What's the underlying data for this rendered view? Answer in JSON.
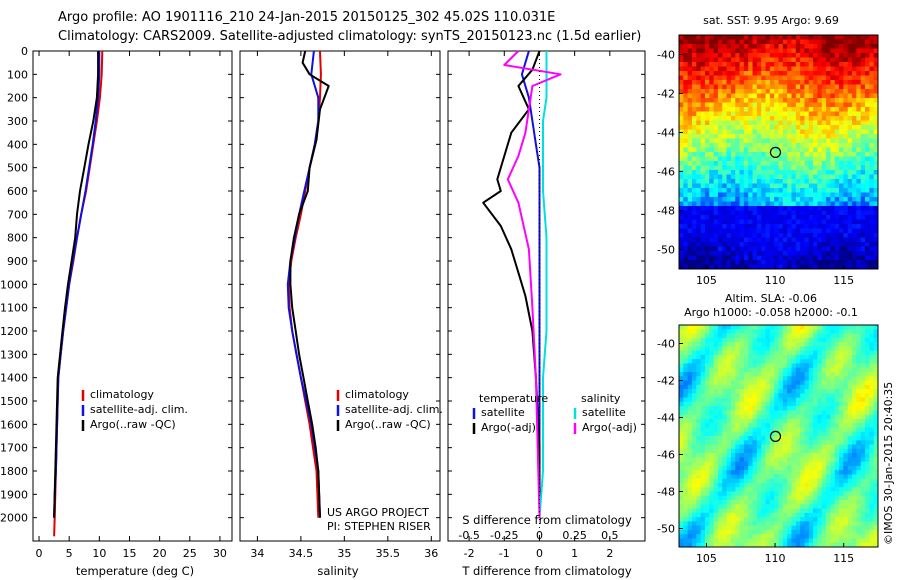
{
  "header": {
    "line1": "Argo profile: AO 1901116_210 24-Jan-2015 20150125_302 45.02S 110.031E",
    "line2": "Climatology: CARS2009. Satellite-adjusted climatology: synTS_20150123.nc (1.5d earlier)"
  },
  "colors": {
    "climatology": "#e00000",
    "satellite": "#1010e0",
    "argo": "#000000",
    "salinity_satellite": "#00e0e0",
    "salinity_argo": "#ff00ff"
  },
  "chart_data": [
    {
      "type": "line",
      "name": "temperature-panel",
      "xlabel": "temperature (deg C)",
      "xlim": [
        -1,
        32
      ],
      "ylim": [
        2100,
        0
      ],
      "xticks": [
        0,
        5,
        10,
        15,
        20,
        25,
        30
      ],
      "yticks": [
        0,
        100,
        200,
        300,
        400,
        500,
        600,
        700,
        800,
        900,
        1000,
        1100,
        1200,
        1300,
        1400,
        1500,
        1600,
        1700,
        1800,
        1900,
        2000
      ],
      "legend": [
        "climatology",
        "satellite-adj. clim.",
        "Argo(..raw -QC)"
      ],
      "series": [
        {
          "name": "climatology",
          "color": "#e00000",
          "x": [
            10.5,
            10.4,
            10.1,
            9.6,
            9.0,
            8.4,
            7.8,
            7.0,
            6.3,
            5.7,
            5.0,
            4.5,
            4.0,
            3.6,
            3.2,
            3.0,
            2.8,
            2.7,
            2.6,
            2.5
          ],
          "y": [
            0,
            100,
            200,
            300,
            400,
            500,
            600,
            700,
            800,
            900,
            1000,
            1100,
            1200,
            1300,
            1400,
            1600,
            1800,
            1900,
            2000,
            2080
          ]
        },
        {
          "name": "satellite-adj. clim.",
          "color": "#1010e0",
          "x": [
            10.0,
            10.0,
            9.8,
            9.4,
            8.9,
            8.3,
            7.7,
            7.0,
            6.3,
            5.6,
            5.0,
            4.5,
            4.0,
            3.6,
            3.2,
            3.0,
            2.8,
            2.6,
            2.5
          ],
          "y": [
            0,
            100,
            200,
            300,
            400,
            500,
            600,
            700,
            800,
            900,
            1000,
            1100,
            1200,
            1300,
            1400,
            1600,
            1800,
            1900,
            2000
          ]
        },
        {
          "name": "Argo(..raw -QC)",
          "color": "#000000",
          "x": [
            9.8,
            9.8,
            9.6,
            9.0,
            8.2,
            7.5,
            6.8,
            6.3,
            6.0,
            5.4,
            4.8,
            4.3,
            3.9,
            3.5,
            3.1,
            2.9,
            2.7,
            2.6,
            2.5
          ],
          "y": [
            0,
            100,
            200,
            300,
            400,
            500,
            600,
            700,
            800,
            900,
            1000,
            1100,
            1200,
            1300,
            1400,
            1600,
            1800,
            1900,
            2000
          ]
        }
      ]
    },
    {
      "type": "line",
      "name": "salinity-panel",
      "xlabel": "salinity",
      "xlim": [
        33.8,
        36.1
      ],
      "ylim": [
        2100,
        0
      ],
      "xticks": [
        34,
        34.5,
        35,
        35.5,
        36
      ],
      "legend": [
        "climatology",
        "satellite-adj. clim.",
        "Argo(..raw -QC)"
      ],
      "note_line1": "US ARGO PROJECT",
      "note_line2": "PI: STEPHEN RISER",
      "series": [
        {
          "name": "climatology",
          "color": "#e00000",
          "x": [
            34.72,
            34.73,
            34.72,
            34.7,
            34.66,
            34.6,
            34.55,
            34.5,
            34.44,
            34.39,
            34.36,
            34.37,
            34.4,
            34.45,
            34.5,
            34.55,
            34.6,
            34.64,
            34.68,
            34.7
          ],
          "y": [
            0,
            100,
            200,
            300,
            400,
            500,
            600,
            700,
            800,
            900,
            1000,
            1100,
            1200,
            1300,
            1400,
            1500,
            1600,
            1700,
            1800,
            2000
          ]
        },
        {
          "name": "satellite-adj. clim.",
          "color": "#1010e0",
          "x": [
            34.65,
            34.62,
            34.7,
            34.7,
            34.66,
            34.6,
            34.54,
            34.48,
            34.43,
            34.38,
            34.35,
            34.36,
            34.4,
            34.45,
            34.5,
            34.56,
            34.62,
            34.66,
            34.7,
            34.72
          ],
          "y": [
            0,
            100,
            200,
            300,
            400,
            500,
            600,
            700,
            800,
            900,
            1000,
            1100,
            1200,
            1300,
            1400,
            1500,
            1600,
            1700,
            1800,
            2000
          ]
        },
        {
          "name": "Argo(..raw -QC)",
          "color": "#000000",
          "x": [
            34.55,
            34.52,
            34.6,
            34.82,
            34.72,
            34.68,
            34.6,
            34.58,
            34.48,
            34.42,
            34.38,
            34.38,
            34.4,
            34.44,
            34.48,
            34.53,
            34.58,
            34.63,
            34.67,
            34.7,
            34.72
          ],
          "y": [
            0,
            50,
            100,
            150,
            250,
            380,
            500,
            600,
            700,
            800,
            900,
            1000,
            1100,
            1200,
            1300,
            1400,
            1500,
            1600,
            1700,
            1800,
            2000
          ]
        }
      ]
    },
    {
      "type": "line",
      "name": "difference-panel",
      "xlabel": "T difference from climatology",
      "top_axis_label": "S difference from climatology",
      "xlim": [
        -2.6,
        3.0
      ],
      "xticks": [
        -2,
        -1,
        0,
        1,
        2
      ],
      "top_xticks": [
        "-0.5",
        "-0.25",
        "0",
        "0.25",
        "0.5"
      ],
      "top_xtick_values": [
        -2,
        -1,
        0,
        1,
        2
      ],
      "ylim": [
        2100,
        0
      ],
      "legend_temp_title": "temperature",
      "legend_sal_title": "salinity",
      "legend_temp": [
        "satellite",
        "Argo(-adj)"
      ],
      "legend_sal": [
        "satellite",
        "Argo(-adj)"
      ],
      "series": [
        {
          "name": "T satellite",
          "color": "#1010e0",
          "x": [
            -0.3,
            -0.5,
            -0.3,
            -0.2,
            -0.1,
            0.0,
            0.0,
            0.0,
            0.0,
            0.0,
            0.0,
            0.0,
            0.0,
            0.0
          ],
          "y": [
            0,
            100,
            200,
            300,
            400,
            500,
            700,
            900,
            1100,
            1300,
            1500,
            1700,
            1900,
            2000
          ]
        },
        {
          "name": "T Argo(-adj)",
          "color": "#000000",
          "x": [
            0.0,
            -0.2,
            -0.6,
            -0.3,
            -0.8,
            -1.0,
            -1.2,
            -1.1,
            -1.6,
            -1.1,
            -0.8,
            -0.6,
            -0.4,
            -0.2,
            -0.1,
            0.0,
            0.0
          ],
          "y": [
            0,
            80,
            150,
            250,
            350,
            450,
            550,
            600,
            650,
            750,
            850,
            950,
            1050,
            1200,
            1400,
            1700,
            2000
          ]
        },
        {
          "name": "S satellite",
          "color": "#00e0e0",
          "x": [
            0.2,
            0.2,
            0.2,
            0.1,
            0.1,
            0.1,
            0.2,
            0.2,
            0.2,
            0.1,
            0.1,
            0.1,
            0.0
          ],
          "y": [
            0,
            100,
            200,
            300,
            400,
            600,
            800,
            1000,
            1200,
            1400,
            1600,
            1800,
            2000
          ]
        },
        {
          "name": "S Argo(-adj)",
          "color": "#ff00ff",
          "x": [
            -0.6,
            -1.0,
            0.6,
            -0.2,
            -0.3,
            -0.4,
            -0.6,
            -0.9,
            -0.6,
            -0.3,
            -0.2,
            -0.1,
            0.0
          ],
          "y": [
            0,
            60,
            100,
            150,
            250,
            350,
            450,
            550,
            650,
            850,
            1100,
            1400,
            2000
          ]
        }
      ]
    },
    {
      "type": "heatmap",
      "name": "sst-map",
      "title": "sat. SST: 9.95  Argo: 9.69",
      "xlim": [
        103,
        117.5
      ],
      "ylim": [
        -51,
        -39
      ],
      "xticks": [
        105,
        110,
        115
      ],
      "yticks": [
        -40,
        -42,
        -44,
        -46,
        -48,
        -50
      ],
      "marker": [
        110.03,
        -45.02
      ]
    },
    {
      "type": "heatmap",
      "name": "sla-map",
      "title_line1": "Altim. SLA: -0.06",
      "title_line2": "Argo h1000: -0.058  h2000: -0.1",
      "xlim": [
        103,
        117.5
      ],
      "ylim": [
        -51,
        -39
      ],
      "xticks": [
        105,
        110,
        115
      ],
      "yticks": [
        -40,
        -42,
        -44,
        -46,
        -48,
        -50
      ],
      "marker": [
        110.03,
        -45.02
      ]
    }
  ],
  "credit": "©IMOS 30-Jan-2015 20:40:35"
}
